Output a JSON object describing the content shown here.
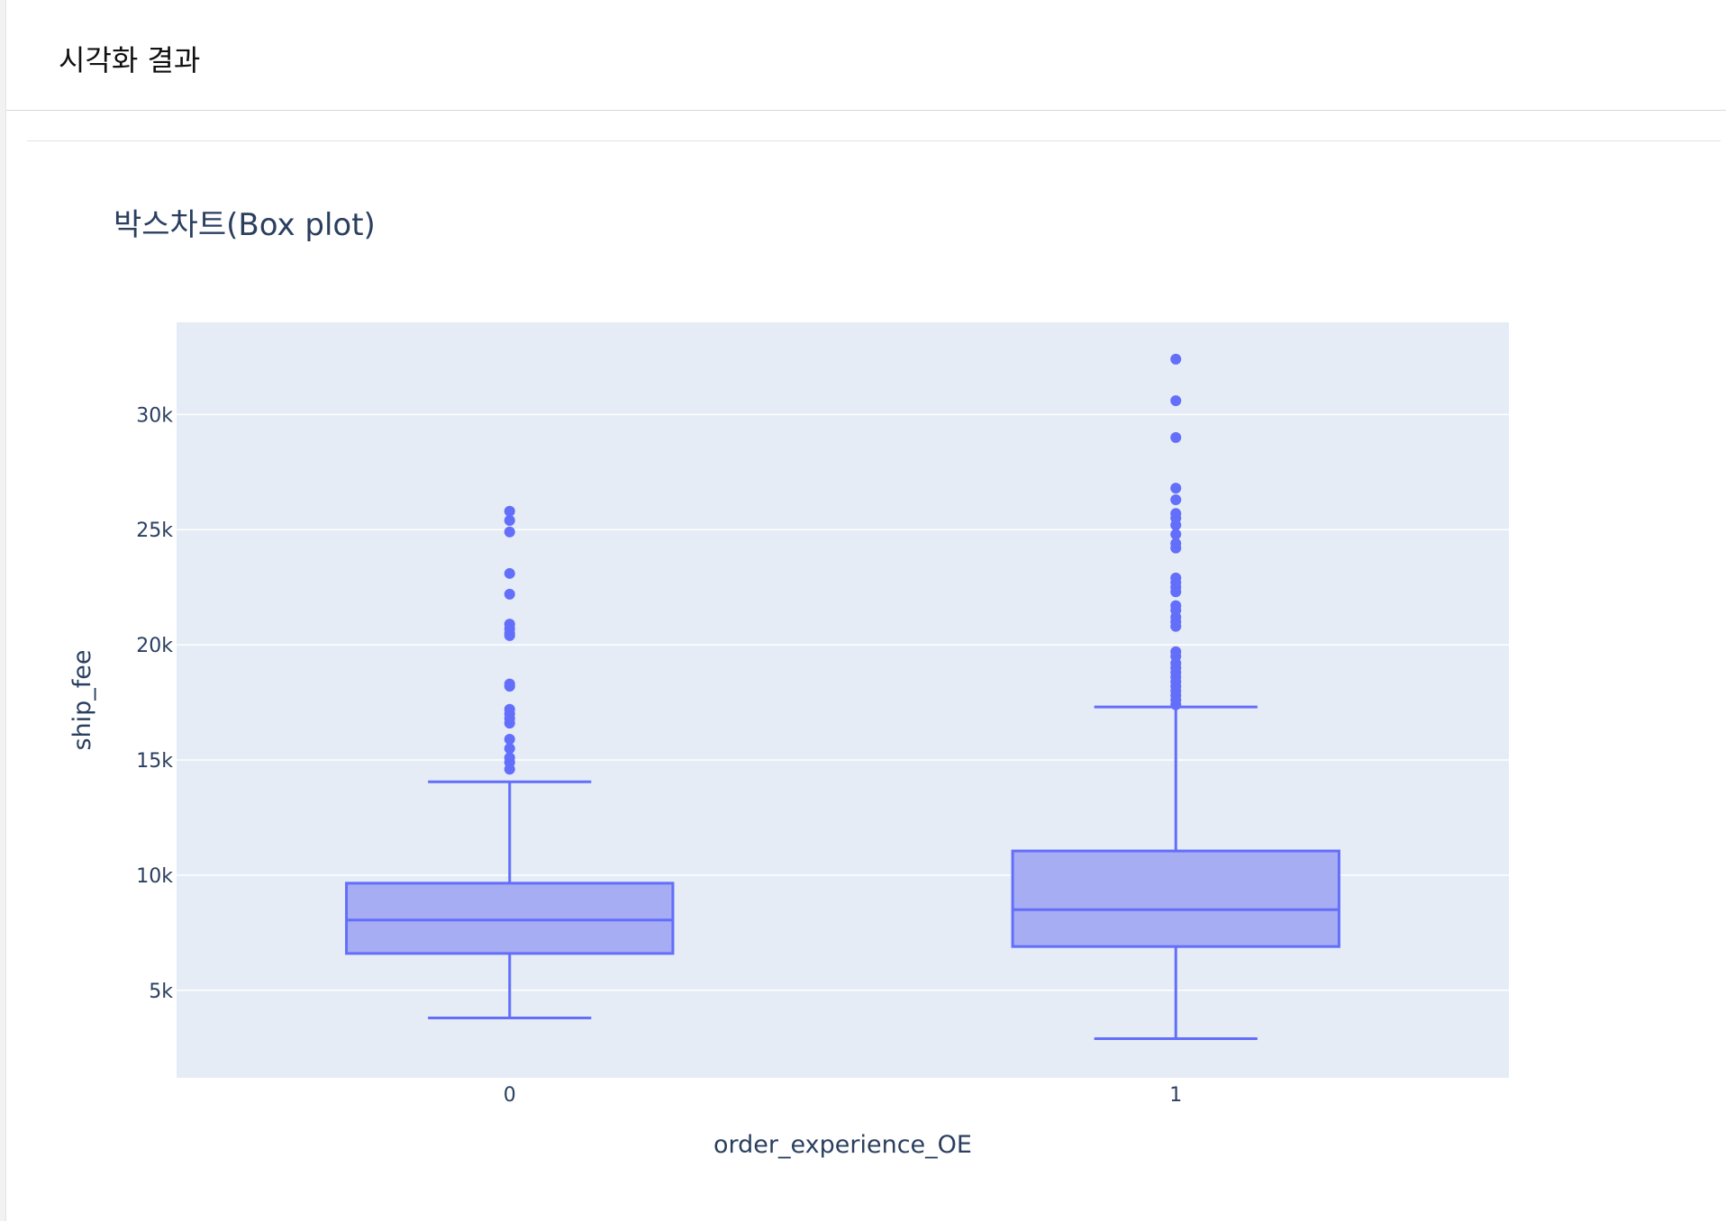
{
  "panel": {
    "title": "시각화 결과"
  },
  "chart_data": {
    "type": "box",
    "title": "박스차트(Box plot)",
    "xlabel": "order_experience_OE",
    "ylabel": "ship_fee",
    "categories": [
      "0",
      "1"
    ],
    "ylim": [
      1200,
      34000
    ],
    "yticks": [
      5000,
      10000,
      15000,
      20000,
      25000,
      30000
    ],
    "ytick_labels": [
      "5k",
      "10k",
      "15k",
      "20k",
      "25k",
      "30k"
    ],
    "grid": true,
    "colors": {
      "plot_bg": "#e5ecf6",
      "box_fill": "#a7adf2",
      "box_line": "#636efa",
      "grid": "#ffffff",
      "text": "#2a3f5f"
    },
    "boxes": [
      {
        "category": "0",
        "lower_fence": 3800,
        "q1": 6600,
        "median": 8050,
        "q3": 9650,
        "upper_fence": 14050,
        "outliers": [
          14600,
          14900,
          15100,
          15500,
          15900,
          16600,
          16800,
          17000,
          17200,
          18200,
          18300,
          20400,
          20500,
          20700,
          20900,
          22200,
          23100,
          24900,
          25400,
          25800
        ]
      },
      {
        "category": "1",
        "lower_fence": 2900,
        "q1": 6900,
        "median": 8500,
        "q3": 11050,
        "upper_fence": 17300,
        "outliers": [
          17400,
          17600,
          17800,
          18000,
          18200,
          18400,
          18600,
          18800,
          19000,
          19200,
          19500,
          19700,
          20800,
          21000,
          21200,
          21500,
          21700,
          22300,
          22500,
          22700,
          22900,
          24200,
          24400,
          24800,
          25200,
          25500,
          25700,
          26300,
          26800,
          29000,
          30600,
          32400
        ]
      }
    ]
  }
}
